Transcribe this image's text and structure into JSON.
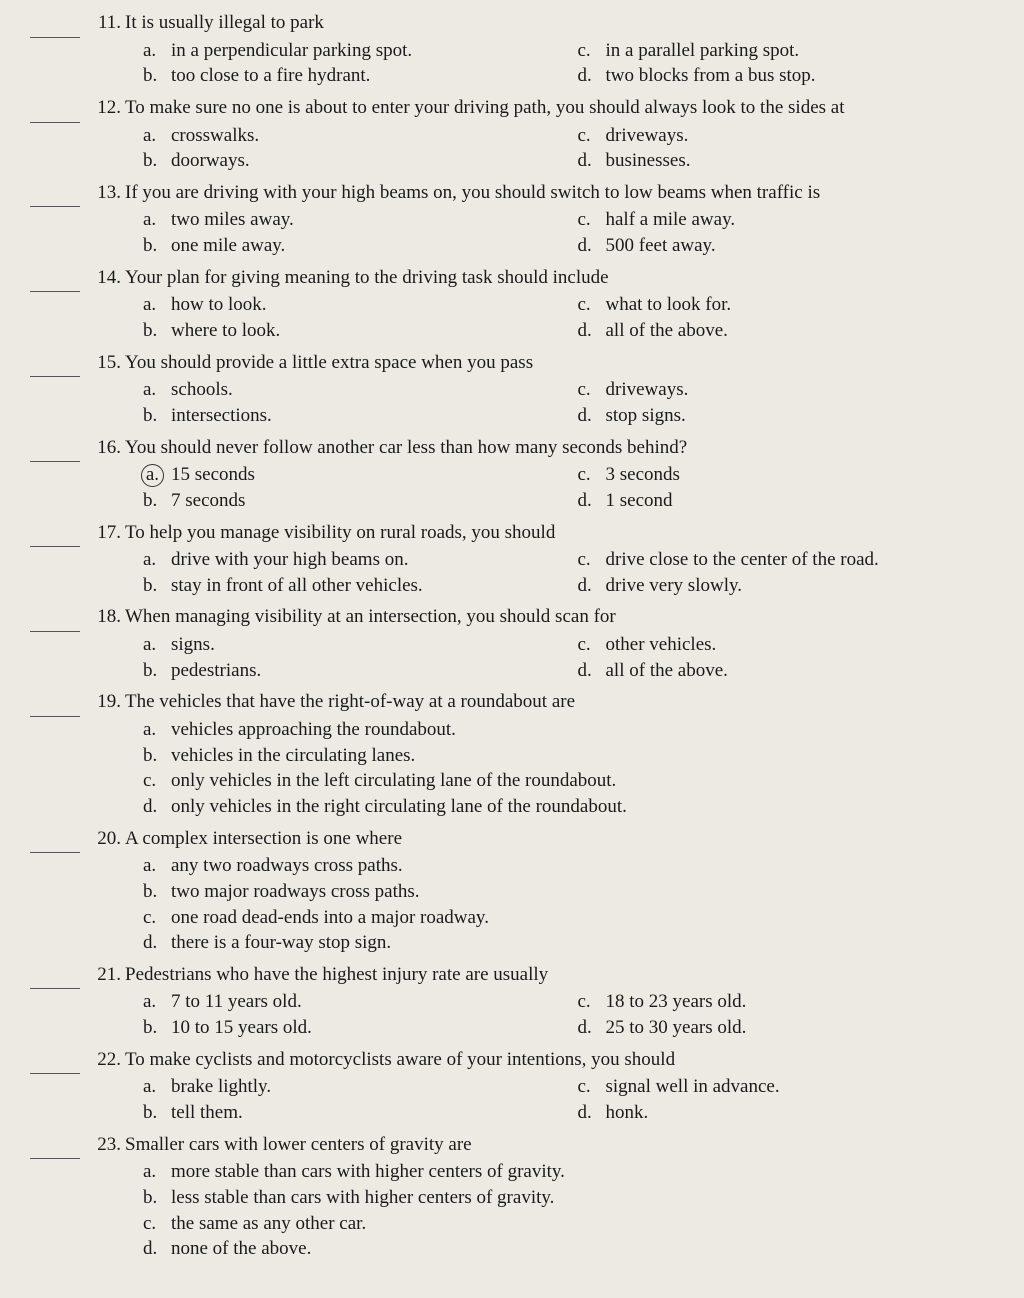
{
  "colors": {
    "background": "#eceae3",
    "text": "#1a1a1a",
    "circle": "#333333"
  },
  "typography": {
    "family": "Times New Roman",
    "size_pt": 14
  },
  "questions": [
    {
      "num": "11.",
      "stem": "It is usually illegal to park",
      "layout": "2col",
      "circled": null,
      "left": [
        {
          "l": "a.",
          "t": "in a perpendicular parking spot."
        },
        {
          "l": "b.",
          "t": "too close to a fire hydrant."
        }
      ],
      "right": [
        {
          "l": "c.",
          "t": "in a parallel parking spot."
        },
        {
          "l": "d.",
          "t": "two blocks from a bus stop."
        }
      ]
    },
    {
      "num": "12.",
      "stem": "To make sure no one is about to enter your driving path, you should always look to the sides at",
      "layout": "2col",
      "circled": null,
      "left": [
        {
          "l": "a.",
          "t": "crosswalks."
        },
        {
          "l": "b.",
          "t": "doorways."
        }
      ],
      "right": [
        {
          "l": "c.",
          "t": "driveways."
        },
        {
          "l": "d.",
          "t": "businesses."
        }
      ]
    },
    {
      "num": "13.",
      "stem": "If you are driving with your high beams on, you should switch to low beams when traffic is",
      "layout": "2col",
      "circled": null,
      "left": [
        {
          "l": "a.",
          "t": "two miles away."
        },
        {
          "l": "b.",
          "t": "one mile away."
        }
      ],
      "right": [
        {
          "l": "c.",
          "t": "half a mile away."
        },
        {
          "l": "d.",
          "t": "500 feet away."
        }
      ]
    },
    {
      "num": "14.",
      "stem": "Your plan for giving meaning to the driving task should include",
      "layout": "2col",
      "circled": null,
      "left": [
        {
          "l": "a.",
          "t": "how to look."
        },
        {
          "l": "b.",
          "t": "where to look."
        }
      ],
      "right": [
        {
          "l": "c.",
          "t": "what to look for."
        },
        {
          "l": "d.",
          "t": "all of the above."
        }
      ]
    },
    {
      "num": "15.",
      "stem": "You should provide a little extra space when you pass",
      "layout": "2col",
      "circled": null,
      "left": [
        {
          "l": "a.",
          "t": "schools."
        },
        {
          "l": "b.",
          "t": "intersections."
        }
      ],
      "right": [
        {
          "l": "c.",
          "t": "driveways."
        },
        {
          "l": "d.",
          "t": "stop signs."
        }
      ]
    },
    {
      "num": "16.",
      "stem": "You should never follow another car less than how many seconds behind?",
      "layout": "2col",
      "circled": "a",
      "left": [
        {
          "l": "a.",
          "t": "15 seconds"
        },
        {
          "l": "b.",
          "t": "7 seconds"
        }
      ],
      "right": [
        {
          "l": "c.",
          "t": "3 seconds"
        },
        {
          "l": "d.",
          "t": "1 second"
        }
      ]
    },
    {
      "num": "17.",
      "stem": "To help you manage visibility on rural roads, you should",
      "layout": "2col",
      "circled": null,
      "left": [
        {
          "l": "a.",
          "t": "drive with your high beams on."
        },
        {
          "l": "b.",
          "t": "stay in front of all other vehicles."
        }
      ],
      "right": [
        {
          "l": "c.",
          "t": "drive close to the center of the road."
        },
        {
          "l": "d.",
          "t": "drive very slowly."
        }
      ]
    },
    {
      "num": "18.",
      "stem": "When managing visibility at an intersection, you should scan for",
      "layout": "2col",
      "circled": null,
      "left": [
        {
          "l": "a.",
          "t": "signs."
        },
        {
          "l": "b.",
          "t": "pedestrians."
        }
      ],
      "right": [
        {
          "l": "c.",
          "t": "other vehicles."
        },
        {
          "l": "d.",
          "t": "all of the above."
        }
      ]
    },
    {
      "num": "19.",
      "stem": "The vehicles that have the right-of-way at a roundabout are",
      "layout": "stack",
      "circled": null,
      "opts": [
        {
          "l": "a.",
          "t": "vehicles approaching the roundabout."
        },
        {
          "l": "b.",
          "t": "vehicles in the circulating lanes."
        },
        {
          "l": "c.",
          "t": "only vehicles in the left circulating lane of the roundabout."
        },
        {
          "l": "d.",
          "t": "only vehicles in the right circulating lane of the roundabout."
        }
      ]
    },
    {
      "num": "20.",
      "stem": "A complex intersection is one where",
      "layout": "stack",
      "circled": null,
      "opts": [
        {
          "l": "a.",
          "t": "any two roadways cross paths."
        },
        {
          "l": "b.",
          "t": "two major roadways cross paths."
        },
        {
          "l": "c.",
          "t": "one road dead-ends into a major roadway."
        },
        {
          "l": "d.",
          "t": "there is a four-way stop sign."
        }
      ]
    },
    {
      "num": "21.",
      "stem": "Pedestrians who have the highest injury rate are usually",
      "layout": "2col",
      "circled": null,
      "left": [
        {
          "l": "a.",
          "t": "7 to 11 years old."
        },
        {
          "l": "b.",
          "t": "10 to 15 years old."
        }
      ],
      "right": [
        {
          "l": "c.",
          "t": "18 to 23 years old."
        },
        {
          "l": "d.",
          "t": "25 to 30 years old."
        }
      ]
    },
    {
      "num": "22.",
      "stem": "To make cyclists and motorcyclists aware of your intentions, you should",
      "layout": "2col",
      "circled": null,
      "left": [
        {
          "l": "a.",
          "t": "brake lightly."
        },
        {
          "l": "b.",
          "t": "tell them."
        }
      ],
      "right": [
        {
          "l": "c.",
          "t": "signal well in advance."
        },
        {
          "l": "d.",
          "t": "honk."
        }
      ]
    },
    {
      "num": "23.",
      "stem": "Smaller cars with lower centers of gravity are",
      "layout": "stack",
      "circled": null,
      "opts": [
        {
          "l": "a.",
          "t": "more stable than cars with higher centers of gravity."
        },
        {
          "l": "b.",
          "t": "less stable than cars with higher centers of gravity."
        },
        {
          "l": "c.",
          "t": "the same as any other car."
        },
        {
          "l": "d.",
          "t": "none of the above."
        }
      ]
    }
  ]
}
